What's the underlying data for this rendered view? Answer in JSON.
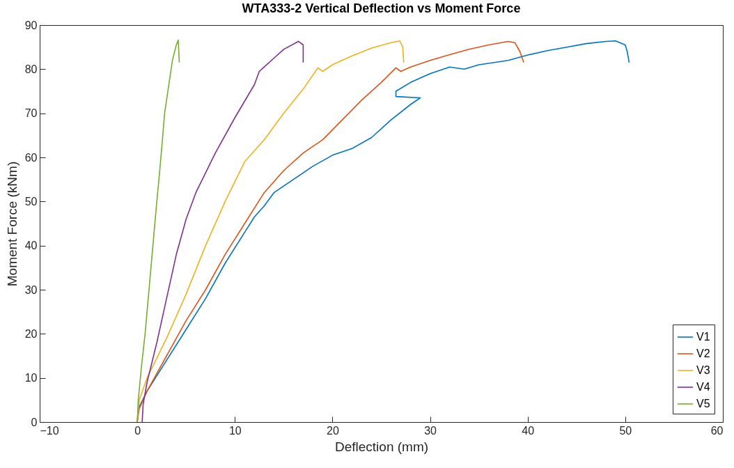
{
  "chart_data": {
    "type": "line",
    "title": "WTA333-2 Vertical Deflection vs Moment Force",
    "xlabel": "Deflection (mm)",
    "ylabel": "Moment Force (kNm)",
    "xlim": [
      -10,
      60
    ],
    "xticks": [
      -10,
      0,
      10,
      20,
      30,
      40,
      50,
      60
    ],
    "ylim": [
      0,
      90
    ],
    "yticks": [
      0,
      10,
      20,
      30,
      40,
      50,
      60,
      70,
      80,
      90
    ],
    "grid": false,
    "legend": "bottom right",
    "line_style": "solid",
    "series": [
      {
        "name": "V1",
        "color": "#0072bd",
        "x": [
          0,
          0.1,
          1,
          3,
          5,
          7,
          9,
          11,
          12,
          13,
          14,
          16,
          18,
          20,
          22,
          24,
          26,
          28,
          29,
          26.5,
          26.5,
          28,
          30,
          32,
          33.5,
          35,
          38,
          40,
          42,
          44,
          46,
          48,
          49,
          50,
          50.2,
          50.4
        ],
        "values": [
          0,
          3,
          7,
          14,
          21,
          28,
          36,
          43,
          46.5,
          49,
          52,
          55,
          58,
          60.5,
          62,
          64.5,
          68.5,
          72,
          73.5,
          73.8,
          75,
          77,
          79,
          80.5,
          80,
          81,
          82,
          83.2,
          84.2,
          85,
          85.8,
          86.3,
          86.4,
          85.5,
          84,
          81.5
        ]
      },
      {
        "name": "V2",
        "color": "#d95319",
        "x": [
          0,
          0.2,
          1,
          3,
          5,
          7,
          9,
          11,
          13,
          15,
          17,
          19,
          21,
          23,
          25,
          26.5,
          27,
          28,
          30,
          32,
          34,
          36,
          38,
          38.7,
          39.2,
          39.6
        ],
        "values": [
          0,
          3,
          7,
          15,
          23,
          30,
          38,
          45,
          52,
          57,
          61,
          64,
          68.5,
          73,
          77,
          80.3,
          79.5,
          80.5,
          82,
          83.3,
          84.5,
          85.5,
          86.3,
          86,
          84,
          81.5
        ]
      },
      {
        "name": "V3",
        "color": "#edb120",
        "x": [
          0,
          0.2,
          1,
          3,
          5,
          7,
          9,
          11,
          13,
          15,
          17,
          18.5,
          19,
          20,
          22,
          24,
          26,
          26.9,
          27.2,
          27.3
        ],
        "values": [
          0,
          5,
          10,
          19,
          29,
          40,
          50,
          59,
          64,
          70,
          75.5,
          80.3,
          79.5,
          81,
          83,
          84.8,
          86,
          86.4,
          85,
          81.5
        ]
      },
      {
        "name": "V4",
        "color": "#7e2f8e",
        "x": [
          0.5,
          0.6,
          1,
          2,
          3,
          4,
          5,
          6,
          8,
          10,
          12,
          12.5,
          13,
          14,
          15,
          16.5,
          17,
          17
        ],
        "values": [
          0,
          4,
          9,
          18,
          28,
          38,
          46,
          52,
          61,
          69,
          76.5,
          79.5,
          80.5,
          82.5,
          84.5,
          86.3,
          85.5,
          81.5
        ]
      },
      {
        "name": "V5",
        "color": "#77ac30",
        "x": [
          0,
          0.1,
          0.4,
          0.8,
          1.2,
          1.6,
          2,
          2.3,
          2.5,
          2.8,
          3.2,
          3.6,
          4,
          4.2,
          4.3
        ],
        "values": [
          0,
          5,
          12,
          20,
          30,
          40,
          50,
          57,
          62,
          70,
          76,
          82,
          85.5,
          86.6,
          81.5
        ]
      }
    ]
  }
}
